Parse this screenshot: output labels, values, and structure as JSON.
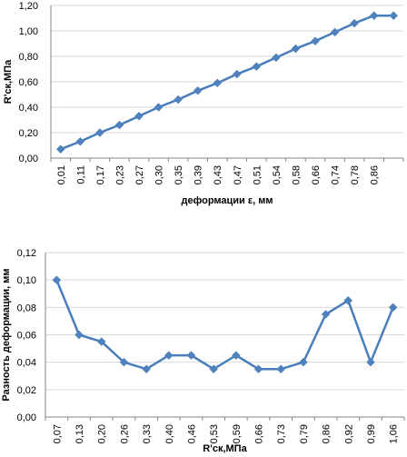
{
  "colors": {
    "series": "#4a7ebb",
    "marker": "#4f81bd",
    "grid": "#d9d9d9",
    "axis": "#868686"
  },
  "chart_data": [
    {
      "type": "line",
      "title": "",
      "xlabel": "деформации ε, мм",
      "ylabel": "R'ск,МПа",
      "categories": [
        "0,01",
        "0,11",
        "0,17",
        "0,23",
        "0,27",
        "0,30",
        "0,35",
        "0,39",
        "0,43",
        "0,47",
        "0,51",
        "0,54",
        "0,58",
        "0,66",
        "0,74",
        "0,78",
        "0,86",
        ""
      ],
      "yticks": [
        "0,00",
        "0,20",
        "0,40",
        "0,60",
        "0,80",
        "1,00",
        "1,20"
      ],
      "ylim": [
        0,
        1.2
      ],
      "grid": true,
      "legend": "none",
      "series": [
        {
          "values": [
            0.07,
            0.13,
            0.2,
            0.26,
            0.33,
            0.4,
            0.46,
            0.53,
            0.59,
            0.66,
            0.72,
            0.79,
            0.86,
            0.92,
            0.99,
            1.06,
            1.12,
            1.12
          ]
        }
      ]
    },
    {
      "type": "line",
      "title": "",
      "xlabel": "R'ск,МПа",
      "ylabel": "Разность деформации, мм",
      "categories": [
        "0,07",
        "0,13",
        "0,20",
        "0,26",
        "0,33",
        "0,40",
        "0,46",
        "0,53",
        "0,59",
        "0,66",
        "0,73",
        "0,79",
        "0,86",
        "0,92",
        "0,99",
        "1,06"
      ],
      "yticks": [
        "0,00",
        "0,02",
        "0,04",
        "0,06",
        "0,08",
        "0,10",
        "0,12"
      ],
      "ylim": [
        0,
        0.12
      ],
      "grid": true,
      "legend": "none",
      "series": [
        {
          "values": [
            0.1,
            0.06,
            0.055,
            0.04,
            0.035,
            0.045,
            0.045,
            0.035,
            0.045,
            0.035,
            0.035,
            0.04,
            0.075,
            0.085,
            0.04,
            0.08
          ]
        }
      ]
    }
  ]
}
